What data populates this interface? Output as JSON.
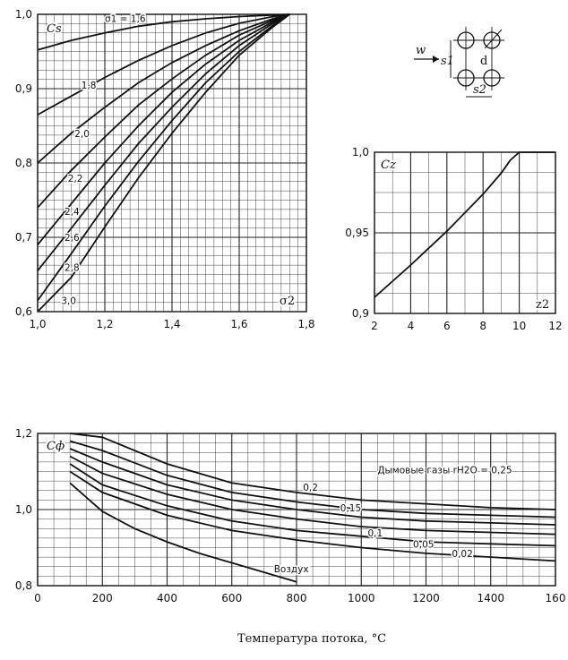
{
  "chart_data": [
    {
      "type": "line",
      "ylabel": "Cs",
      "xlabel": "σ2",
      "xlim": [
        1.0,
        1.8
      ],
      "ylim": [
        0.6,
        1.0
      ],
      "x_ticks": [
        "1,0",
        "1,2",
        "1,4",
        "1,6",
        "1,8"
      ],
      "y_ticks": [
        "0,6",
        "0,7",
        "0,8",
        "0,9",
        "1,0"
      ],
      "grid": true,
      "series": [
        {
          "name": "σ1 = 1,6",
          "x": [
            1.0,
            1.1,
            1.2,
            1.3,
            1.4,
            1.5,
            1.6,
            1.7,
            1.75
          ],
          "y": [
            0.952,
            0.965,
            0.975,
            0.984,
            0.99,
            0.994,
            0.997,
            0.999,
            1.0
          ]
        },
        {
          "name": "1,8",
          "x": [
            1.0,
            1.1,
            1.2,
            1.3,
            1.4,
            1.5,
            1.6,
            1.7,
            1.75
          ],
          "y": [
            0.865,
            0.89,
            0.915,
            0.938,
            0.958,
            0.975,
            0.988,
            0.997,
            1.0
          ]
        },
        {
          "name": "2,0",
          "x": [
            1.0,
            1.1,
            1.2,
            1.3,
            1.4,
            1.5,
            1.6,
            1.7,
            1.75
          ],
          "y": [
            0.8,
            0.84,
            0.875,
            0.908,
            0.935,
            0.958,
            0.978,
            0.994,
            1.0
          ]
        },
        {
          "name": "2,2",
          "x": [
            1.0,
            1.1,
            1.2,
            1.3,
            1.4,
            1.5,
            1.6,
            1.7,
            1.75
          ],
          "y": [
            0.74,
            0.79,
            0.835,
            0.878,
            0.913,
            0.945,
            0.972,
            0.992,
            1.0
          ]
        },
        {
          "name": "2,4",
          "x": [
            1.0,
            1.1,
            1.2,
            1.3,
            1.4,
            1.5,
            1.6,
            1.7,
            1.75
          ],
          "y": [
            0.69,
            0.745,
            0.8,
            0.85,
            0.895,
            0.933,
            0.965,
            0.99,
            1.0
          ]
        },
        {
          "name": "2,6",
          "x": [
            1.0,
            1.1,
            1.2,
            1.3,
            1.4,
            1.5,
            1.6,
            1.7,
            1.75
          ],
          "y": [
            0.655,
            0.712,
            0.77,
            0.826,
            0.875,
            0.92,
            0.958,
            0.988,
            1.0
          ]
        },
        {
          "name": "2,8",
          "x": [
            1.0,
            1.1,
            1.2,
            1.3,
            1.4,
            1.5,
            1.6,
            1.7,
            1.75
          ],
          "y": [
            0.615,
            0.678,
            0.742,
            0.802,
            0.857,
            0.908,
            0.95,
            0.985,
            1.0
          ]
        },
        {
          "name": "3,0",
          "x": [
            1.0,
            1.1,
            1.2,
            1.3,
            1.4,
            1.5,
            1.6,
            1.7,
            1.75
          ],
          "y": [
            0.58,
            0.646,
            0.714,
            0.78,
            0.84,
            0.895,
            0.945,
            0.983,
            1.0
          ]
        }
      ]
    },
    {
      "type": "line",
      "ylabel": "Cz",
      "xlabel": "z2",
      "xlim": [
        2,
        12
      ],
      "ylim": [
        0.9,
        1.0
      ],
      "x_ticks": [
        "2",
        "4",
        "6",
        "8",
        "10",
        "12"
      ],
      "y_ticks": [
        "0,9",
        "0,95",
        "1,0"
      ],
      "grid": true,
      "series": [
        {
          "x": [
            2,
            4,
            6,
            8,
            9,
            9.5,
            10,
            12
          ],
          "y": [
            0.91,
            0.93,
            0.951,
            0.974,
            0.987,
            0.995,
            1.0,
            1.0
          ]
        }
      ]
    },
    {
      "type": "line",
      "ylabel": "Cф",
      "xlabel": "Температура потока, °С",
      "xlim": [
        0,
        1600
      ],
      "ylim": [
        0.8,
        1.2
      ],
      "x_ticks": [
        "0",
        "200",
        "400",
        "600",
        "800",
        "1000",
        "1200",
        "1400",
        "160"
      ],
      "y_ticks": [
        "0,8",
        "1,0",
        "1,2"
      ],
      "grid": true,
      "series": [
        {
          "name": "Дымовые газы rH2O = 0,25",
          "x": [
            100,
            200,
            400,
            600,
            800,
            1000,
            1200,
            1400,
            1600
          ],
          "y": [
            1.2,
            1.19,
            1.12,
            1.07,
            1.045,
            1.025,
            1.015,
            1.005,
            1.0
          ]
        },
        {
          "name": "0,2",
          "x": [
            100,
            200,
            400,
            600,
            800,
            1000,
            1200,
            1400,
            1600
          ],
          "y": [
            1.18,
            1.155,
            1.09,
            1.045,
            1.02,
            1.0,
            0.99,
            0.985,
            0.98
          ]
        },
        {
          "name": "0,15",
          "x": [
            100,
            200,
            400,
            600,
            800,
            1000,
            1200,
            1400,
            1600
          ],
          "y": [
            1.16,
            1.125,
            1.065,
            1.025,
            1.0,
            0.98,
            0.97,
            0.965,
            0.96
          ]
        },
        {
          "name": "0,1",
          "x": [
            100,
            200,
            400,
            600,
            800,
            1000,
            1200,
            1400,
            1600
          ],
          "y": [
            1.14,
            1.095,
            1.04,
            1.0,
            0.975,
            0.955,
            0.945,
            0.94,
            0.935
          ]
        },
        {
          "name": "0,05",
          "x": [
            100,
            200,
            400,
            600,
            800,
            1000,
            1200,
            1400,
            1600
          ],
          "y": [
            1.12,
            1.065,
            1.01,
            0.97,
            0.945,
            0.93,
            0.915,
            0.91,
            0.905
          ]
        },
        {
          "name": "0,02",
          "x": [
            100,
            200,
            400,
            600,
            800,
            1000,
            1200,
            1400,
            1600
          ],
          "y": [
            1.1,
            1.045,
            0.985,
            0.945,
            0.92,
            0.9,
            0.885,
            0.875,
            0.865
          ]
        },
        {
          "name": "Воздух",
          "x": [
            100,
            200,
            300,
            400,
            500,
            600,
            700,
            800
          ],
          "y": [
            1.07,
            0.995,
            0.95,
            0.915,
            0.885,
            0.86,
            0.835,
            0.81
          ]
        }
      ]
    }
  ],
  "diagram": {
    "w_label": "w",
    "s1_label": "s1",
    "s2_label": "s2"
  }
}
